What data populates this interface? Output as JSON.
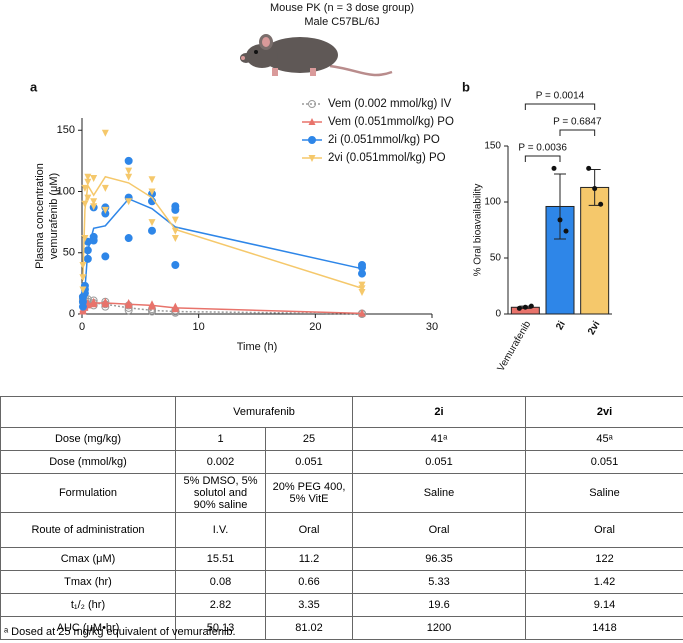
{
  "header": {
    "title": "Mouse PK (n = 3 dose group)",
    "subtitle": "Male C57BL/6J"
  },
  "chart_data": [
    {
      "type": "line",
      "panel": "a",
      "xlabel": "Time (h)",
      "ylabel": [
        "Plasma concentration",
        "vemurafenib (μM)"
      ],
      "xlim": [
        0,
        30
      ],
      "xticks": [
        0,
        10,
        20,
        30
      ],
      "ylim": [
        0,
        160
      ],
      "yticks": [
        0,
        50,
        100,
        150
      ],
      "legend": "upper right",
      "series": [
        {
          "name": "Vem (0.002 mmol/kg) IV",
          "color": "#9a9a9a",
          "marker": "open-circle",
          "dash": "dotted",
          "x": [
            0.08,
            0.25,
            0.5,
            1,
            2,
            4,
            6,
            8,
            24
          ],
          "values": [
            12,
            11,
            10,
            9,
            8,
            5,
            3,
            2,
            0.2
          ],
          "replicates": [
            [
              10,
              12,
              14
            ],
            [
              9,
              11,
              13
            ],
            [
              8,
              10,
              12
            ],
            [
              7,
              9,
              11
            ],
            [
              6,
              8,
              10
            ],
            [
              3,
              5,
              7
            ],
            [
              2,
              3,
              4
            ],
            [
              1,
              2,
              3
            ],
            [
              0,
              0.2,
              0.4
            ]
          ]
        },
        {
          "name": "Vem (0.051mmol/kg) PO",
          "color": "#e8736b",
          "marker": "triangle",
          "dash": "solid",
          "x": [
            0.08,
            0.25,
            0.5,
            1,
            2,
            4,
            6,
            8,
            24
          ],
          "values": [
            3,
            6,
            8,
            9,
            9,
            8,
            7,
            5,
            0.5
          ],
          "replicates": [
            [
              2,
              3,
              4
            ],
            [
              5,
              6,
              7
            ],
            [
              7,
              8,
              9
            ],
            [
              8,
              9,
              10
            ],
            [
              8,
              9,
              10
            ],
            [
              7,
              8,
              9
            ],
            [
              6,
              7,
              8
            ],
            [
              4,
              5,
              6
            ],
            [
              0.3,
              0.5,
              0.7
            ]
          ]
        },
        {
          "name": "2i (0.051mmol/kg) PO",
          "color": "#2e86e8",
          "marker": "circle",
          "dash": "solid",
          "x": [
            0.08,
            0.25,
            0.5,
            1,
            2,
            4,
            6,
            8,
            24
          ],
          "values": [
            10,
            20,
            52,
            70,
            72,
            94,
            86,
            71,
            37
          ],
          "replicates": [
            [
              6,
              10,
              14
            ],
            [
              17,
              20,
              23
            ],
            [
              45,
              52,
              59
            ],
            [
              60,
              63,
              87
            ],
            [
              47,
              82,
              87
            ],
            [
              62,
              95,
              125
            ],
            [
              68,
              92,
              98
            ],
            [
              40,
              85,
              88
            ],
            [
              33,
              38,
              40
            ]
          ]
        },
        {
          "name": "2vi (0.051mmol/kg) PO",
          "color": "#f5c86b",
          "marker": "inverted-triangle",
          "dash": "solid",
          "x": [
            0.08,
            0.25,
            0.5,
            1,
            2,
            4,
            6,
            8,
            24
          ],
          "values": [
            30,
            85,
            105,
            97,
            112,
            107,
            95,
            69,
            21
          ],
          "replicates": [
            [
              20,
              30,
              40
            ],
            [
              62,
              90,
              103
            ],
            [
              95,
              108,
              112
            ],
            [
              88,
              92,
              111
            ],
            [
              85,
              103,
              148
            ],
            [
              92,
              112,
              117
            ],
            [
              75,
              100,
              110
            ],
            [
              62,
              68,
              77
            ],
            [
              18,
              21,
              24
            ]
          ]
        }
      ]
    },
    {
      "type": "bar",
      "panel": "b",
      "ylabel": "% Oral bioavailability",
      "categories": [
        "Vemurafenib",
        "2i",
        "2vi"
      ],
      "values": [
        6,
        96,
        113
      ],
      "errors": [
        1,
        29,
        16
      ],
      "points": [
        [
          5,
          6,
          7
        ],
        [
          130,
          84,
          74
        ],
        [
          130,
          112,
          98
        ]
      ],
      "colors": [
        "#e8736b",
        "#2e86e8",
        "#f5c86b"
      ],
      "ylim": [
        0,
        150
      ],
      "yticks": [
        0,
        50,
        100,
        150
      ],
      "comparisons": [
        {
          "groups": [
            "Vemurafenib",
            "2vi"
          ],
          "label": "P = 0.0014"
        },
        {
          "groups": [
            "2i",
            "2vi"
          ],
          "label": "P = 0.6847"
        },
        {
          "groups": [
            "Vemurafenib",
            "2i"
          ],
          "label": "P = 0.0036"
        }
      ]
    }
  ],
  "table": {
    "header": [
      "Vemurafenib",
      "2i",
      "2vi"
    ],
    "rows": [
      [
        "Dose (mg/kg)",
        "1",
        "25",
        "41ᵃ",
        "45ᵃ"
      ],
      [
        "Dose (mmol/kg)",
        "0.002",
        "0.051",
        "0.051",
        "0.051"
      ],
      [
        "Formulation",
        "5% DMSO, 5% solutol and 90% saline",
        "20% PEG 400, 5% VitE",
        "Saline",
        "Saline"
      ],
      [
        "Route of administration",
        "I.V.",
        "Oral",
        "Oral",
        "Oral"
      ],
      [
        "Cmax (μM)",
        "15.51",
        "11.2",
        "96.35",
        "122"
      ],
      [
        "Tmax (hr)",
        "0.08",
        "0.66",
        "5.33",
        "1.42"
      ],
      [
        "t₁/₂ (hr)",
        "2.82",
        "3.35",
        "19.6",
        "9.14"
      ],
      [
        "AUC (μM•hr)",
        "50.13",
        "81.02",
        "1200",
        "1418"
      ]
    ]
  },
  "footnote": "ᵃ Dosed at 25 mg/kg equivalent of vemurafenib."
}
